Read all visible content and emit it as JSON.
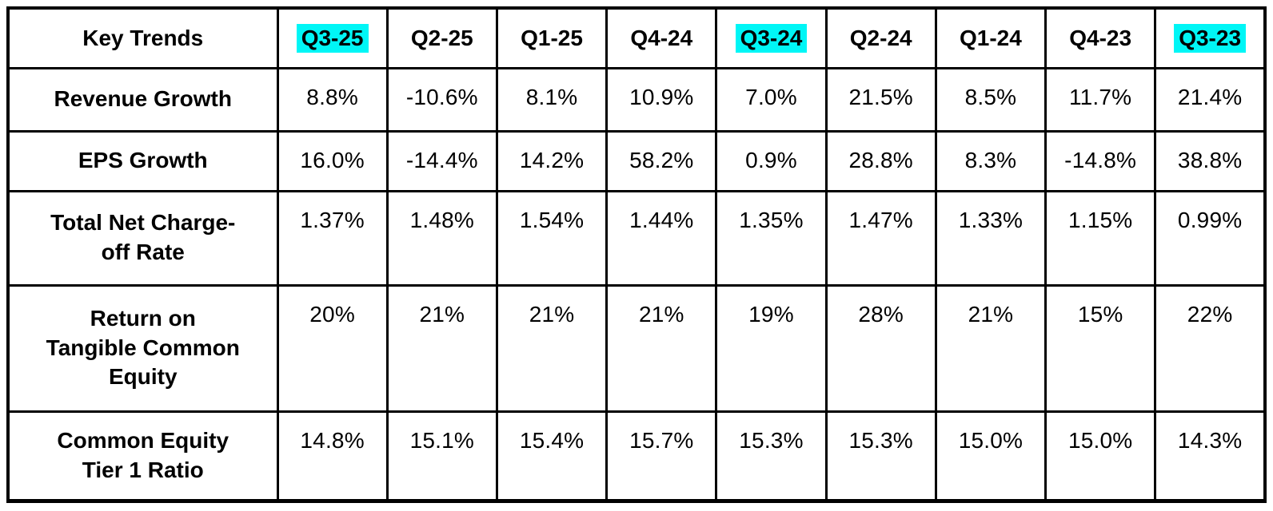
{
  "table": {
    "highlight_color": "#00f6f6",
    "header": {
      "row_label": "Key Trends",
      "columns": [
        {
          "label": "Q3-25",
          "highlight": true
        },
        {
          "label": "Q2-25",
          "highlight": false
        },
        {
          "label": "Q1-25",
          "highlight": false
        },
        {
          "label": "Q4-24",
          "highlight": false
        },
        {
          "label": "Q3-24",
          "highlight": true
        },
        {
          "label": "Q2-24",
          "highlight": false
        },
        {
          "label": "Q1-24",
          "highlight": false
        },
        {
          "label": "Q4-23",
          "highlight": false
        },
        {
          "label": "Q3-23",
          "highlight": true
        }
      ]
    },
    "rows": [
      {
        "label": "Revenue Growth",
        "values": [
          "8.8%",
          "-10.6%",
          "8.1%",
          "10.9%",
          "7.0%",
          "21.5%",
          "8.5%",
          "11.7%",
          "21.4%"
        ]
      },
      {
        "label": "EPS Growth",
        "values": [
          "16.0%",
          "-14.4%",
          "14.2%",
          "58.2%",
          "0.9%",
          "28.8%",
          "8.3%",
          "-14.8%",
          "38.8%"
        ]
      },
      {
        "label": "Total Net Charge-off Rate",
        "values": [
          "1.37%",
          "1.48%",
          "1.54%",
          "1.44%",
          "1.35%",
          "1.47%",
          "1.33%",
          "1.15%",
          "0.99%"
        ]
      },
      {
        "label": "Return on Tangible Common Equity",
        "values": [
          "20%",
          "21%",
          "21%",
          "21%",
          "19%",
          "28%",
          "21%",
          "15%",
          "22%"
        ]
      },
      {
        "label": "Common Equity Tier 1 Ratio",
        "values": [
          "14.8%",
          "15.1%",
          "15.4%",
          "15.7%",
          "15.3%",
          "15.3%",
          "15.0%",
          "15.0%",
          "14.3%"
        ]
      }
    ]
  },
  "chart_data": {
    "type": "table",
    "title": "Key Trends",
    "columns": [
      "Q3-25",
      "Q2-25",
      "Q1-25",
      "Q4-24",
      "Q3-24",
      "Q2-24",
      "Q1-24",
      "Q4-23",
      "Q3-23"
    ],
    "highlighted_columns": [
      "Q3-25",
      "Q3-24",
      "Q3-23"
    ],
    "unit": "%",
    "series": [
      {
        "name": "Revenue Growth",
        "values": [
          8.8,
          -10.6,
          8.1,
          10.9,
          7.0,
          21.5,
          8.5,
          11.7,
          21.4
        ]
      },
      {
        "name": "EPS Growth",
        "values": [
          16.0,
          -14.4,
          14.2,
          58.2,
          0.9,
          28.8,
          8.3,
          -14.8,
          38.8
        ]
      },
      {
        "name": "Total Net Charge-off Rate",
        "values": [
          1.37,
          1.48,
          1.54,
          1.44,
          1.35,
          1.47,
          1.33,
          1.15,
          0.99
        ]
      },
      {
        "name": "Return on Tangible Common Equity",
        "values": [
          20,
          21,
          21,
          21,
          19,
          28,
          21,
          15,
          22
        ]
      },
      {
        "name": "Common Equity Tier 1 Ratio",
        "values": [
          14.8,
          15.1,
          15.4,
          15.7,
          15.3,
          15.3,
          15.0,
          15.0,
          14.3
        ]
      }
    ]
  }
}
